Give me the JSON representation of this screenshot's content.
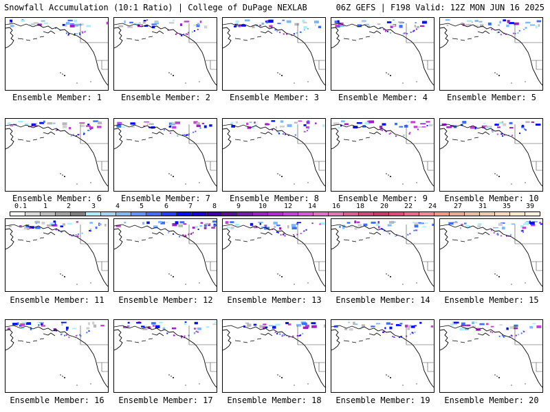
{
  "header": {
    "left_title": "Snowfall Accumulation (10:1 Ratio) | College of DuPage NEXLAB",
    "right_title": "06Z GEFS | F198 Valid: 12Z MON JUN 16 2025"
  },
  "colorbar": {
    "labels": [
      "0.1",
      "1",
      "2",
      "3",
      "4",
      "5",
      "6",
      "7",
      "8",
      "9",
      "10",
      "12",
      "14",
      "16",
      "18",
      "20",
      "22",
      "24",
      "27",
      "31",
      "35",
      "39"
    ],
    "colors": [
      "#ffffff",
      "#d9d9d9",
      "#bdbdbd",
      "#a0a0a0",
      "#7f7f7f",
      "#a5f0ff",
      "#9cd6ff",
      "#7ab8ff",
      "#5a96ff",
      "#3a6fff",
      "#1f3fff",
      "#0010ff",
      "#1800d8",
      "#3a00a8",
      "#5a1090",
      "#7a1aa8",
      "#9a22c0",
      "#b02ad0",
      "#c440d8",
      "#d458d8",
      "#e070c8",
      "#e078b0",
      "#d86090",
      "#d04878",
      "#c83868",
      "#e04878",
      "#e86888",
      "#f08898",
      "#f09888",
      "#f0a890",
      "#f0b8a0",
      "#f4c8b0",
      "#f8d8c0",
      "#fae8d0",
      "#fff0e0"
    ],
    "label_step": 1
  },
  "members": [
    {
      "label": "Ensemble Member: 1"
    },
    {
      "label": "Ensemble Member: 2"
    },
    {
      "label": "Ensemble Member: 3"
    },
    {
      "label": "Ensemble Member: 4"
    },
    {
      "label": "Ensemble Member: 5"
    },
    {
      "label": "Ensemble Member: 6"
    },
    {
      "label": "Ensemble Member: 7"
    },
    {
      "label": "Ensemble Member: 8"
    },
    {
      "label": "Ensemble Member: 9"
    },
    {
      "label": "Ensemble Member: 10"
    },
    {
      "label": "Ensemble Member: 11"
    },
    {
      "label": "Ensemble Member: 12"
    },
    {
      "label": "Ensemble Member: 13"
    },
    {
      "label": "Ensemble Member: 14"
    },
    {
      "label": "Ensemble Member: 15"
    },
    {
      "label": "Ensemble Member: 16"
    },
    {
      "label": "Ensemble Member: 17"
    },
    {
      "label": "Ensemble Member: 18"
    },
    {
      "label": "Ensemble Member: 19"
    },
    {
      "label": "Ensemble Member: 20"
    }
  ]
}
